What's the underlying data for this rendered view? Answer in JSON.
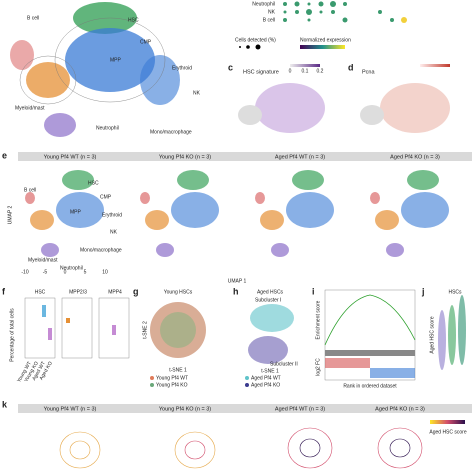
{
  "panel_letters": [
    "c",
    "d",
    "e",
    "f",
    "g",
    "h",
    "i",
    "j",
    "k"
  ],
  "umap_top": {
    "labels": [
      "B cell",
      "HSC",
      "CMP",
      "MPP",
      "Erythroid",
      "NK",
      "Myeloid/mast",
      "Neutrophil",
      "Mono/macrophage"
    ]
  },
  "dotplot": {
    "rows": [
      "Neutrophil",
      "NK",
      "B cell"
    ],
    "size_legend": "Cells detected (%)",
    "color_legend": "Normalized expression"
  },
  "panel_c": {
    "title": "HSC signature",
    "scale": [
      "0",
      "0.1",
      "0.2"
    ]
  },
  "panel_d": {
    "title": "Pcna"
  },
  "panel_e": {
    "titles": [
      "Young Pf4 WT (n = 3)",
      "Young Pf4 KO (n = 3)",
      "Aged Pf4 WT (n = 3)",
      "Aged Pf4 KO (n = 3)"
    ],
    "labels": [
      "HSC",
      "B cell",
      "CMP",
      "MPP",
      "Erythroid",
      "NK",
      "Mono/macrophage",
      "Myeloid/mast",
      "Neutrophil"
    ],
    "x_label": "UMAP 1",
    "y_label": "UMAP 2",
    "xticks": [
      "-10",
      "-5",
      "0",
      "5",
      "10"
    ]
  },
  "panel_f": {
    "titles": [
      "HSC",
      "MPP2/3",
      "MPP4"
    ],
    "y_label": "Percentage of total cells",
    "groups": [
      "Young WT",
      "Young KO",
      "Aged WT",
      "Aged KO"
    ]
  },
  "panel_g": {
    "title": "Young HSCs",
    "x_label": "t-SNE 1",
    "y_label": "t-SNE 2",
    "legend": [
      "Young Pf4 WT",
      "Young Pf4 KO"
    ]
  },
  "panel_h": {
    "title": "Aged HSCs",
    "clusters": [
      "Subcluster I",
      "Subcluster II"
    ],
    "x_label": "t-SNE 1",
    "legend": [
      "Aged Pf4 WT",
      "Aged Pf4 KO"
    ]
  },
  "panel_i": {
    "y_label": "Enrichment score",
    "y2_label": "log2 FC",
    "x_label": "Rank in ordered dataset"
  },
  "panel_j": {
    "title": "HSCs",
    "y_label": "Aged HSC score"
  },
  "panel_k": {
    "titles": [
      "Young Pf4 WT (n = 3)",
      "Young Pf4 KO (n = 3)",
      "Aged Pf4 WT (n = 3)",
      "Aged Pf4 KO (n = 3)"
    ],
    "legend": "Aged HSC score"
  }
}
